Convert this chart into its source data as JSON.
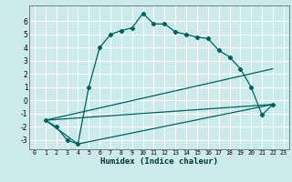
{
  "xlabel": "Humidex (Indice chaleur)",
  "bg_color": "#cceaea",
  "grid_color": "#ffffff",
  "line_color": "#006060",
  "xlim": [
    -0.5,
    23.5
  ],
  "ylim": [
    -3.7,
    7.2
  ],
  "yticks": [
    -3,
    -2,
    -1,
    0,
    1,
    2,
    3,
    4,
    5,
    6
  ],
  "xticks": [
    0,
    1,
    2,
    3,
    4,
    5,
    6,
    7,
    8,
    9,
    10,
    11,
    12,
    13,
    14,
    15,
    16,
    17,
    18,
    19,
    20,
    21,
    22,
    23
  ],
  "series1_x": [
    1,
    2,
    3,
    4,
    5,
    6,
    7,
    8,
    9,
    10,
    11,
    12,
    13,
    14,
    15,
    16,
    17,
    18,
    19,
    20,
    21,
    22
  ],
  "series1_y": [
    -1.5,
    -2.0,
    -3.0,
    -3.3,
    1.0,
    4.0,
    5.0,
    5.3,
    5.5,
    6.6,
    5.8,
    5.8,
    5.2,
    5.0,
    4.8,
    4.7,
    3.8,
    3.3,
    2.4,
    1.0,
    -1.1,
    -0.3
  ],
  "series2_x": [
    1,
    4,
    22
  ],
  "series2_y": [
    -1.5,
    -3.3,
    -0.3
  ],
  "series3_x": [
    1,
    22
  ],
  "series3_y": [
    -1.5,
    -0.3
  ],
  "series4_x": [
    1,
    22
  ],
  "series4_y": [
    -1.5,
    2.4
  ]
}
